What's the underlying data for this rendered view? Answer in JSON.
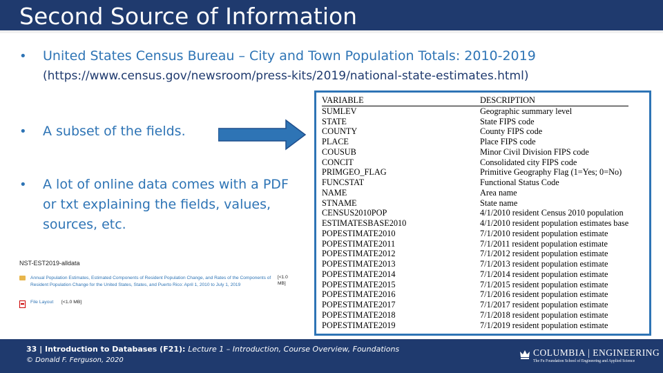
{
  "slide": {
    "title": "Second Source of Information",
    "bullets": [
      {
        "text": "United States Census Bureau – City and Town Population Totals: 2010-2019"
      },
      {
        "text": "A subset of the fields."
      },
      {
        "text": "A lot of online data comes with a PDF or txt explaining the fields, values, sources, etc."
      }
    ],
    "url": "(https://www.census.gov/newsroom/press-kits/2019/national-state-estimates.html)",
    "bullet_marker": "•"
  },
  "table": {
    "headers": [
      "VARIABLE",
      "DESCRIPTION"
    ],
    "rows": [
      [
        "SUMLEV",
        "Geographic summary level"
      ],
      [
        "STATE",
        "State FIPS code"
      ],
      [
        "COUNTY",
        "County FIPS code"
      ],
      [
        "PLACE",
        "Place FIPS code"
      ],
      [
        "COUSUB",
        "Minor Civil Division FIPS code"
      ],
      [
        "CONCIT",
        "Consolidated city FIPS code"
      ],
      [
        "PRIMGEO_FLAG",
        "Primitive Geography Flag (1=Yes; 0=No)"
      ],
      [
        "FUNCSTAT",
        "Functional Status Code"
      ],
      [
        "NAME",
        "Area name"
      ],
      [
        "STNAME",
        "State name"
      ],
      [
        "CENSUS2010POP",
        "4/1/2010 resident Census 2010 population"
      ],
      [
        "ESTIMATESBASE2010",
        "4/1/2010 resident population estimates base"
      ],
      [
        "POPESTIMATE2010",
        "7/1/2010 resident population estimate"
      ],
      [
        "POPESTIMATE2011",
        "7/1/2011 resident population estimate"
      ],
      [
        "POPESTIMATE2012",
        "7/1/2012 resident population estimate"
      ],
      [
        "POPESTIMATE2013",
        "7/1/2013 resident population estimate"
      ],
      [
        "POPESTIMATE2014",
        "7/1/2014 resident population estimate"
      ],
      [
        "POPESTIMATE2015",
        "7/1/2015 resident population estimate"
      ],
      [
        "POPESTIMATE2016",
        "7/1/2016 resident population estimate"
      ],
      [
        "POPESTIMATE2017",
        "7/1/2017 resident population estimate"
      ],
      [
        "POPESTIMATE2018",
        "7/1/2018 resident population estimate"
      ],
      [
        "POPESTIMATE2019",
        "7/1/2019 resident population estimate"
      ]
    ]
  },
  "thumbnail": {
    "title": "NST-EST2019-alldata",
    "file_link": "Annual Population Estimates, Estimated Components of Resident Population Change, and Rates of the Components of Resident Population Change for the United States, States, and Puerto Rico: April 1, 2010 to July 1, 2019",
    "file_size": "[<1.0 MB]",
    "layout_link": "File Layout",
    "layout_size": "[<1.0 MB]"
  },
  "footer": {
    "line1_prefix": "33 | Introduction to Databases (F21): ",
    "line1_suffix": "Lecture 1 – Introduction, Course Overview, Foundations",
    "line2": "© Donald F. Ferguson, 2020",
    "logo_name": "COLUMBIA | ENGINEERING",
    "logo_sub": "The Fu Foundation School of Engineering and Applied Science"
  },
  "colors": {
    "navy": "#1f3a6e",
    "accent_blue": "#2e74b5",
    "folder": "#e8b64c",
    "pdf_red": "#cc0000"
  },
  "icons": [
    "folder-icon",
    "pdf-icon",
    "crown-icon",
    "right-arrow"
  ]
}
